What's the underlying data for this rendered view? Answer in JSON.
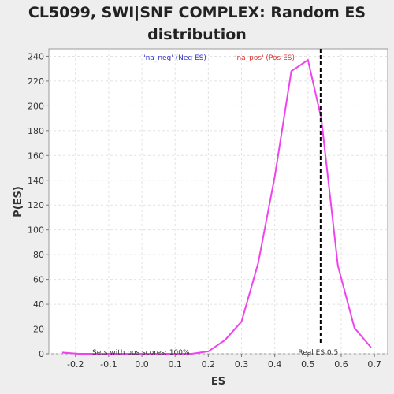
{
  "chart_data": {
    "type": "line",
    "title_line1": "CL5099, SWI|SNF COMPLEX: Random ES",
    "title_line2": "distribution",
    "xlabel": "ES",
    "ylabel": "P(ES)",
    "xlim": [
      -0.28,
      0.74
    ],
    "ylim": [
      0,
      246
    ],
    "x_ticks": [
      -0.2,
      -0.1,
      0.0,
      0.1,
      0.2,
      0.3,
      0.4,
      0.5,
      0.6,
      0.7
    ],
    "x_tick_labels": [
      "-0.2",
      "-0.1",
      "0.0",
      "0.1",
      "0.2",
      "0.3",
      "0.4",
      "0.5",
      "0.6",
      "0.7"
    ],
    "y_ticks": [
      0,
      20,
      40,
      60,
      80,
      100,
      120,
      140,
      160,
      180,
      200,
      220,
      240
    ],
    "y_tick_labels": [
      "0",
      "20",
      "40",
      "60",
      "80",
      "100",
      "120",
      "140",
      "160",
      "180",
      "200",
      "220",
      "240"
    ],
    "grid": true,
    "series": [
      {
        "color": "#ee44ee",
        "x": [
          -0.24,
          -0.19,
          -0.14,
          -0.09,
          -0.04,
          0.01,
          0.06,
          0.11,
          0.15,
          0.2,
          0.25,
          0.3,
          0.35,
          0.4,
          0.45,
          0.5,
          0.54,
          0.59,
          0.64,
          0.69
        ],
        "y": [
          1,
          0,
          0,
          0,
          0,
          0,
          0,
          0,
          0,
          2,
          11,
          26,
          73,
          143,
          228,
          237,
          190,
          71,
          21,
          5
        ]
      }
    ],
    "real_es": {
      "x": 0.538,
      "label": "Real ES 0.5",
      "color": "#000000"
    },
    "annotations": {
      "neg": {
        "text": "'na_neg' (Neg ES)",
        "color": "#3333cc"
      },
      "pos": {
        "text": "'na_pos' (Pos ES)",
        "color": "#dd3333"
      },
      "sets": {
        "text": "Sets with pos scores: 100%",
        "color": "#333333"
      }
    }
  }
}
